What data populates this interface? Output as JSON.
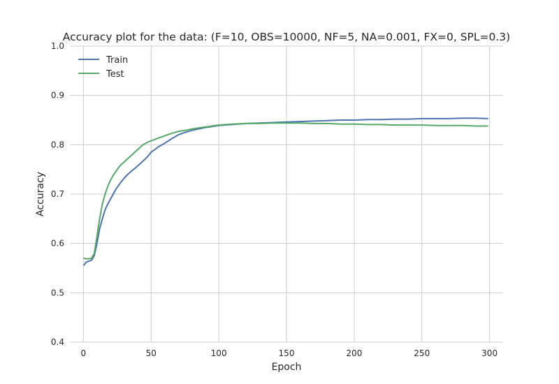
{
  "chart_data": {
    "type": "line",
    "title": "Accuracy plot for the data: (F=10, OBS=10000, NF=5, NA=0.001, FX=0, SPL=0.3)",
    "xlabel": "Epoch",
    "ylabel": "Accuracy",
    "xlim": [
      -10,
      310
    ],
    "ylim": [
      0.4,
      1.0
    ],
    "xticks": [
      0,
      50,
      100,
      150,
      200,
      250,
      300
    ],
    "yticks": [
      0.4,
      0.5,
      0.6,
      0.7,
      0.8,
      0.9,
      1.0
    ],
    "xtick_labels": [
      "0",
      "50",
      "100",
      "150",
      "200",
      "250",
      "300"
    ],
    "ytick_labels": [
      "0.4",
      "0.5",
      "0.6",
      "0.7",
      "0.8",
      "0.9",
      "1.0"
    ],
    "grid": true,
    "legend_position": "top-left",
    "x": [
      0,
      2,
      4,
      6,
      8,
      10,
      12,
      14,
      16,
      18,
      20,
      22,
      24,
      26,
      28,
      30,
      32,
      34,
      36,
      38,
      40,
      42,
      44,
      46,
      48,
      50,
      55,
      60,
      65,
      70,
      75,
      80,
      85,
      90,
      95,
      100,
      110,
      120,
      130,
      140,
      150,
      160,
      170,
      180,
      190,
      200,
      210,
      220,
      230,
      240,
      250,
      260,
      270,
      280,
      290,
      299
    ],
    "series": [
      {
        "name": "Train",
        "color": "#4c72b0",
        "values": [
          0.555,
          0.562,
          0.564,
          0.566,
          0.575,
          0.6,
          0.63,
          0.65,
          0.668,
          0.68,
          0.69,
          0.7,
          0.71,
          0.718,
          0.725,
          0.732,
          0.738,
          0.743,
          0.748,
          0.752,
          0.757,
          0.762,
          0.767,
          0.772,
          0.778,
          0.785,
          0.795,
          0.803,
          0.812,
          0.82,
          0.825,
          0.829,
          0.832,
          0.835,
          0.837,
          0.839,
          0.841,
          0.843,
          0.844,
          0.845,
          0.846,
          0.847,
          0.848,
          0.849,
          0.85,
          0.85,
          0.851,
          0.851,
          0.852,
          0.852,
          0.853,
          0.853,
          0.853,
          0.854,
          0.854,
          0.853
        ]
      },
      {
        "name": "Test",
        "color": "#55a868",
        "values": [
          0.57,
          0.569,
          0.569,
          0.57,
          0.58,
          0.615,
          0.65,
          0.68,
          0.7,
          0.716,
          0.728,
          0.738,
          0.746,
          0.754,
          0.76,
          0.765,
          0.77,
          0.775,
          0.78,
          0.785,
          0.79,
          0.795,
          0.8,
          0.803,
          0.806,
          0.808,
          0.813,
          0.818,
          0.823,
          0.827,
          0.829,
          0.832,
          0.834,
          0.836,
          0.838,
          0.84,
          0.842,
          0.843,
          0.843,
          0.844,
          0.844,
          0.844,
          0.843,
          0.843,
          0.842,
          0.842,
          0.841,
          0.841,
          0.84,
          0.84,
          0.84,
          0.839,
          0.839,
          0.839,
          0.838,
          0.838
        ]
      }
    ]
  }
}
